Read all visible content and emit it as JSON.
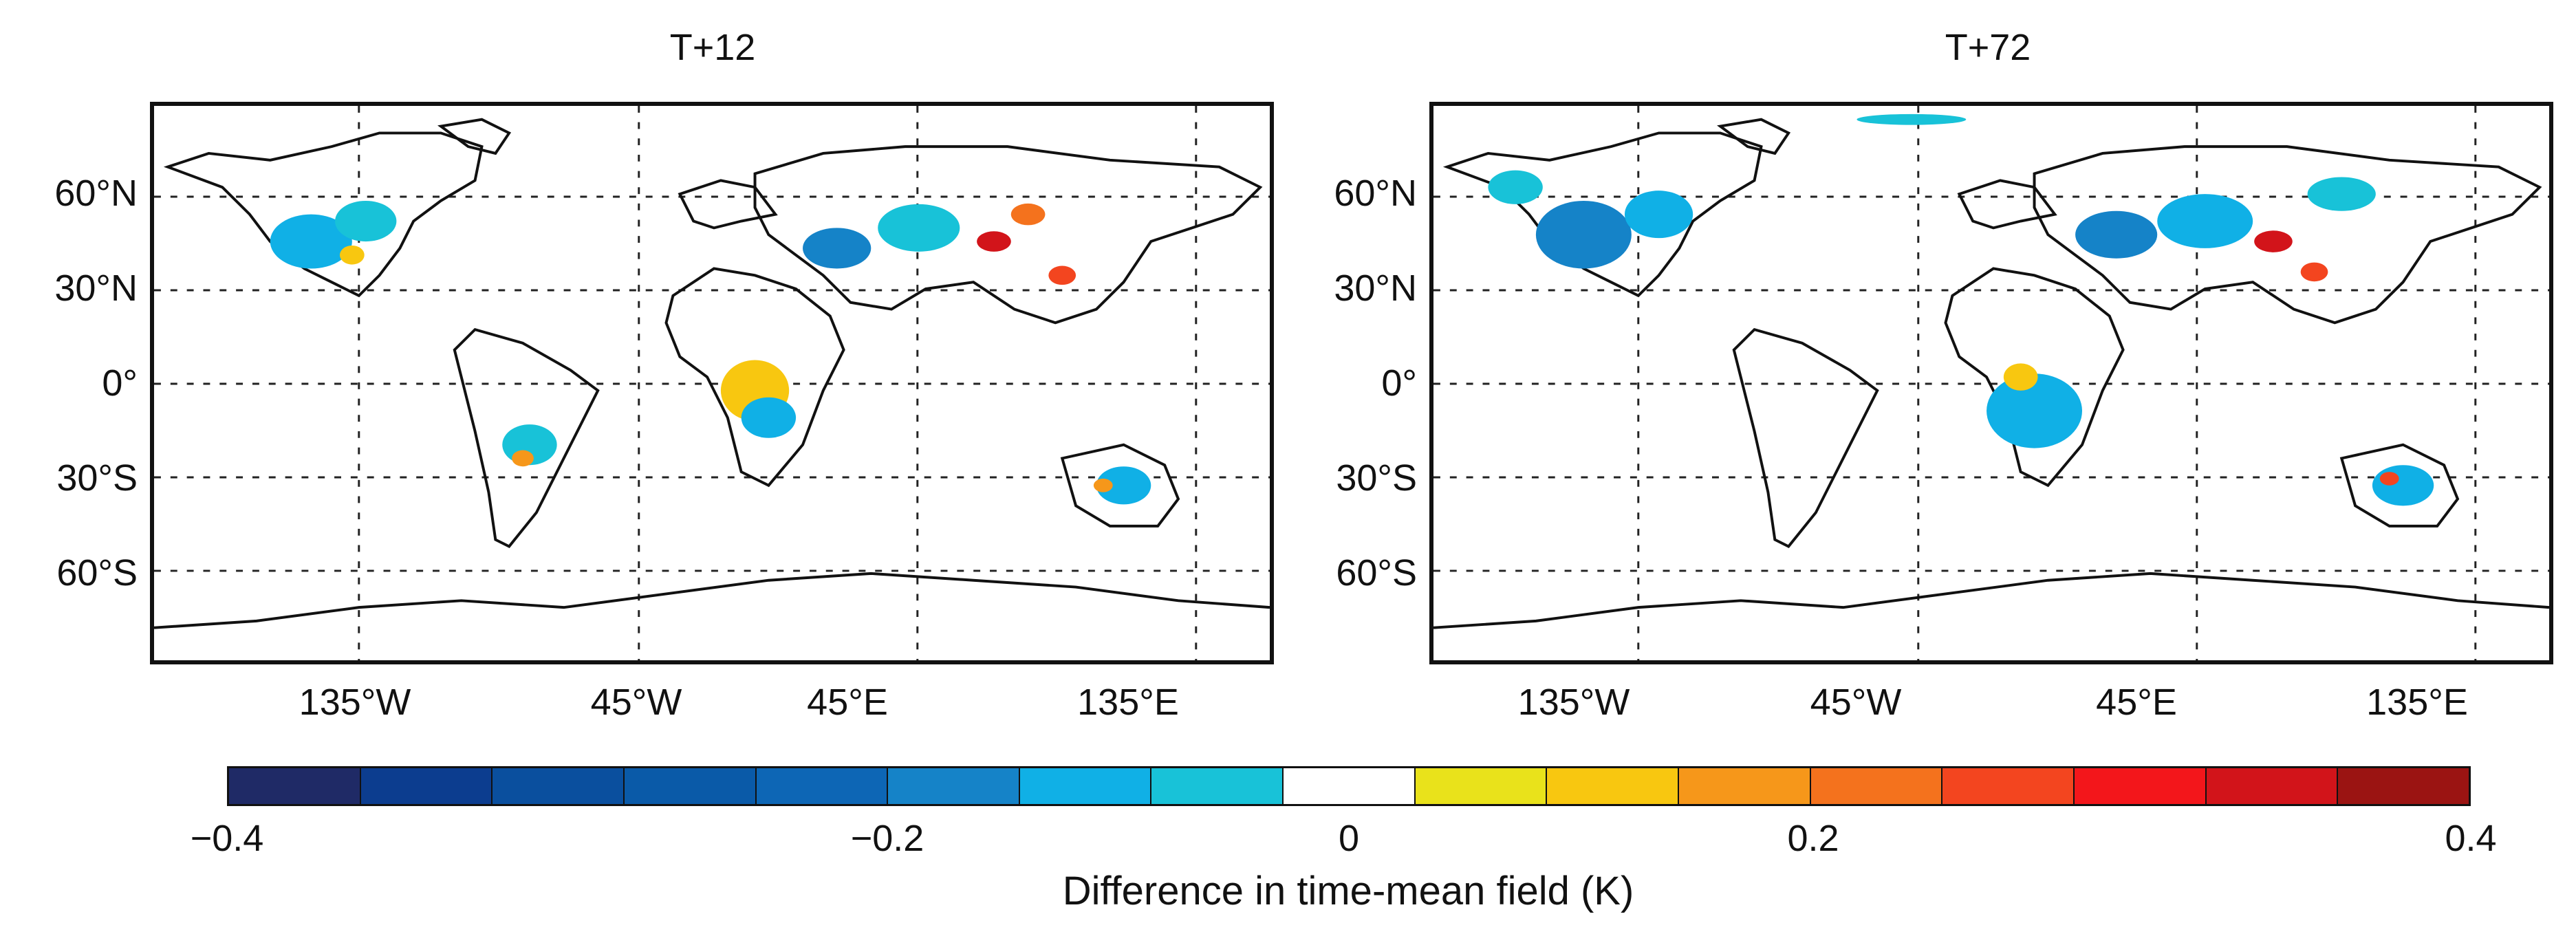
{
  "panels": [
    {
      "title": "T+12"
    },
    {
      "title": "T+72"
    }
  ],
  "lat_labels": [
    "60°N",
    "30°N",
    "0°",
    "30°S",
    "60°S"
  ],
  "lon_labels": [
    "135°W",
    "45°W",
    "45°E",
    "135°E"
  ],
  "colorbar": {
    "label": "Difference in time-mean field (K)",
    "ticks": [
      "−0.4",
      "−0.2",
      "0",
      "0.2",
      "0.4"
    ],
    "colors": [
      "#1f2a66",
      "#0c3d8f",
      "#0a4f9e",
      "#0a5aa8",
      "#0d66b5",
      "#1583c8",
      "#10b0e6",
      "#18c2d8",
      "#ffffff",
      "#e9e21b",
      "#f8c710",
      "#f6971a",
      "#f4721d",
      "#f3451f",
      "#f3161b",
      "#d2141a",
      "#9b1412"
    ]
  }
}
